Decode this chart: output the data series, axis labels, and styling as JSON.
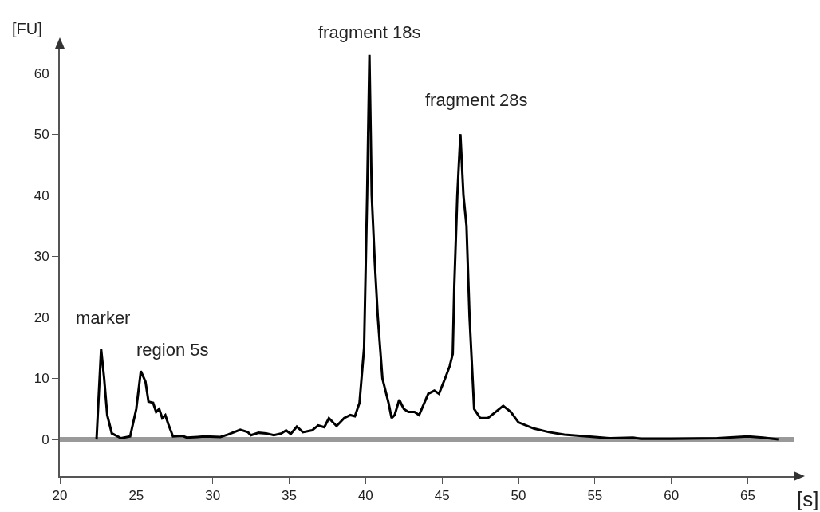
{
  "chart_data": {
    "type": "line",
    "xlabel": "[s]",
    "ylabel": "[FU]",
    "xlim": [
      20,
      68
    ],
    "ylim": [
      -6,
      64
    ],
    "xticks": [
      20,
      25,
      30,
      35,
      40,
      45,
      50,
      55,
      60,
      65
    ],
    "yticks": [
      0,
      10,
      20,
      30,
      40,
      50,
      60
    ],
    "grid": false,
    "marker": "none",
    "line_style": "solid",
    "ref_lines": [
      {
        "axis": "y",
        "value": 0,
        "color": "#999999"
      }
    ],
    "annotations": [
      {
        "text": "marker",
        "x": 22.7,
        "y": 14.8
      },
      {
        "text": "region 5s",
        "x": 25.3,
        "y": 11.2
      },
      {
        "text": "fragment 18s",
        "x": 40.25,
        "y": 63
      },
      {
        "text": "fragment 28s",
        "x": 46.2,
        "y": 50
      }
    ],
    "x": [
      22.4,
      22.5,
      22.7,
      22.9,
      23.1,
      23.4,
      24,
      24.6,
      25,
      25.3,
      25.6,
      25.8,
      26.1,
      26.3,
      26.5,
      26.7,
      26.9,
      27.1,
      27.4,
      28,
      28.3,
      29,
      29.5,
      30.5,
      31,
      31.8,
      32.3,
      32.5,
      33,
      33.5,
      34,
      34.5,
      34.8,
      35.1,
      35.5,
      35.9,
      36.5,
      36.9,
      37.3,
      37.6,
      38.1,
      38.6,
      39,
      39.3,
      39.6,
      39.9,
      40.1,
      40.25,
      40.4,
      40.6,
      40.8,
      41.1,
      41.5,
      41.7,
      41.9,
      42.2,
      42.5,
      42.8,
      43.2,
      43.5,
      44.1,
      44.5,
      44.8,
      45.2,
      45.5,
      45.7,
      45.8,
      46,
      46.2,
      46.4,
      46.6,
      46.8,
      47,
      47.1,
      47.5,
      48,
      48.5,
      49,
      49.5,
      50,
      51,
      52,
      53,
      54,
      55,
      56,
      57.5,
      58,
      60,
      63,
      65,
      66,
      67
    ],
    "series": [
      {
        "color": "#000000",
        "values": [
          0,
          5,
          14.8,
          10,
          4,
          1,
          0.2,
          0.5,
          5,
          11.2,
          9.5,
          6.2,
          6,
          4.5,
          5,
          3.5,
          4,
          2.5,
          0.5,
          0.6,
          0.3,
          0.4,
          0.5,
          0.4,
          0.8,
          1.6,
          1.2,
          0.7,
          1.1,
          1,
          0.7,
          1,
          1.5,
          0.9,
          2.1,
          1.2,
          1.5,
          2.3,
          2,
          3.5,
          2.2,
          3.5,
          4,
          3.8,
          6,
          15,
          40,
          63,
          40,
          29,
          20,
          10,
          6,
          3.5,
          4,
          6.5,
          5,
          4.5,
          4.5,
          4,
          7.5,
          8,
          7.5,
          10,
          12,
          14,
          25,
          40,
          50,
          40,
          35,
          20,
          10,
          5,
          3.5,
          3.5,
          4.5,
          5.5,
          4.5,
          2.8,
          1.8,
          1.2,
          0.8,
          0.6,
          0.4,
          0.2,
          0.3,
          0.1,
          0.1,
          0.2,
          0.5,
          0.3,
          0
        ]
      }
    ]
  }
}
